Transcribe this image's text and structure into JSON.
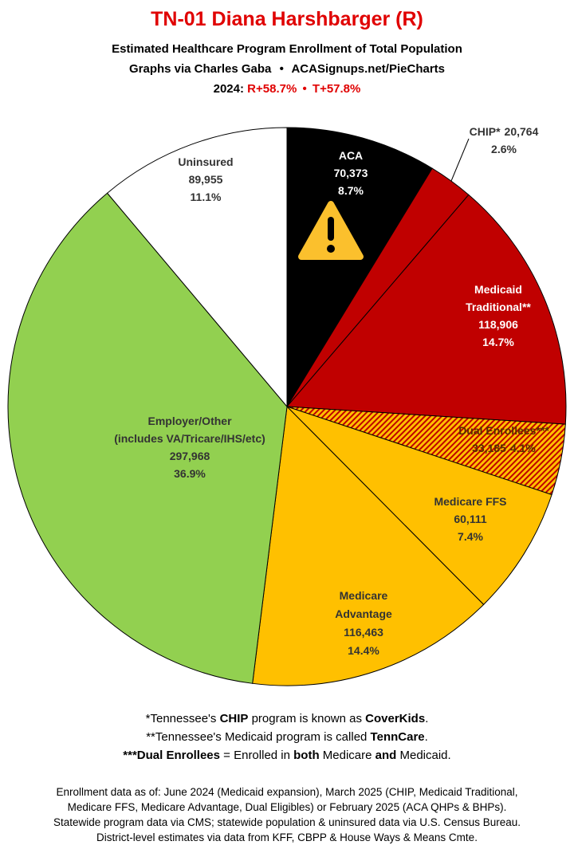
{
  "chart_data": {
    "type": "pie",
    "title": "TN-01 Diana Harshbarger (R)",
    "subtitle": [
      "Estimated Healthcare Program Enrollment of Total Population",
      "Graphs via Charles Gaba",
      "•",
      "ACASignups.net/PieCharts"
    ],
    "year_line": [
      "2024:",
      "R+58.7%",
      "•",
      "T+57.8%"
    ],
    "categories": [
      [
        "ACA"
      ],
      [
        "CHIP*"
      ],
      [
        "Medicaid",
        "Traditional**"
      ],
      [
        "Dual Enrollees***"
      ],
      [
        "Medicare FFS"
      ],
      [
        "Medicare",
        "Advantage"
      ],
      [
        "Employer/Other",
        "(includes VA/Tricare/IHS/etc)"
      ],
      [
        "Uninsured"
      ]
    ],
    "values": [
      70373,
      20764,
      118906,
      33185,
      60111,
      116463,
      297968,
      89955
    ],
    "value_labels": [
      "70,373",
      "20,764",
      "118,906",
      "33,185",
      "60,111",
      "116,463",
      "297,968",
      "89,955"
    ],
    "shares": [
      8.7,
      2.6,
      14.7,
      4.1,
      7.4,
      14.4,
      36.9,
      11.1
    ],
    "share_labels": [
      "8.7%",
      "2.6%",
      "14.7%",
      "4.1%",
      "7.4%",
      "14.4%",
      "36.9%",
      "11.1%"
    ],
    "colors": [
      "#000000",
      "#c00000",
      "#c00000",
      "hatch",
      "#ffc000",
      "#ffc000",
      "#92d050",
      "#ffffff"
    ],
    "footnotes": [
      [
        "*Tennessee's ",
        "CHIP",
        " program is known as ",
        "CoverKids",
        "."
      ],
      [
        "**Tennessee's Medicaid program is called ",
        "TennCare",
        "."
      ],
      [
        "***Dual Enrollees",
        " = Enrolled in ",
        "both",
        " Medicare ",
        "and",
        " Medicaid."
      ]
    ],
    "sources": [
      "Enrollment data as of: June 2024 (Medicaid expansion), March 2025 (CHIP, Medicaid Traditional,",
      "Medicare FFS, Medicare Advantage, Dual Eligibles) or February 2025 (ACA QHPs & BHPs).",
      "Statewide program data via CMS; statewide population & uninsured data via U.S. Census Bureau.",
      "District-level estimates via data from KFF, CBPP & House Ways & Means Cmte."
    ]
  }
}
